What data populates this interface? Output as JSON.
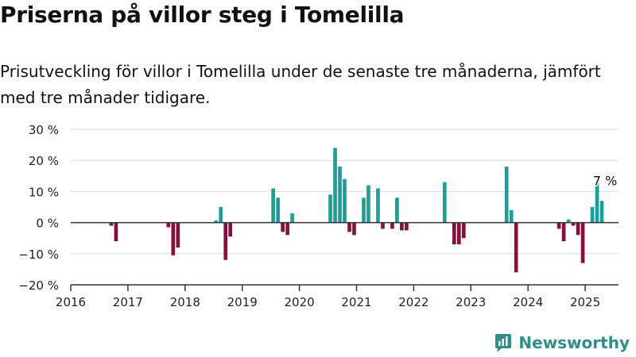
{
  "header": {
    "title": "Priserna på villor steg i Tomelilla",
    "subtitle": "Prisutveckling för villor i Tomelilla under de senaste tre månaderna, jämfört med tre månader tidigare."
  },
  "brand": {
    "name": "Newsworthy",
    "color": "#2f8f88"
  },
  "colors": {
    "positive": "#13a39a",
    "negative": "#8e0b3f",
    "grid": "#d9d9d9",
    "axis": "#333333"
  },
  "chart_data": {
    "type": "bar",
    "title": "",
    "xlabel": "",
    "ylabel": "",
    "y_unit": "%",
    "ylim": [
      -20,
      30
    ],
    "yticks": [
      -20,
      -10,
      0,
      10,
      20,
      30
    ],
    "ytick_labels": [
      "−20 %",
      "−10 %",
      "0 %",
      "10 %",
      "20 %",
      "30 %"
    ],
    "xlim": [
      "2016-01",
      "2025-08"
    ],
    "xtick_labels": [
      "2016",
      "2017",
      "2018",
      "2019",
      "2020",
      "2021",
      "2022",
      "2023",
      "2024",
      "2025"
    ],
    "grid": "horizontal",
    "annotation": {
      "label": "7 %",
      "month": "2025-03",
      "value": 7
    },
    "points": [
      {
        "month": "2016-09",
        "value": -1
      },
      {
        "month": "2016-10",
        "value": -6
      },
      {
        "month": "2017-09",
        "value": -1.5
      },
      {
        "month": "2017-10",
        "value": -10.5
      },
      {
        "month": "2017-11",
        "value": -8
      },
      {
        "month": "2018-07",
        "value": 0.7
      },
      {
        "month": "2018-08",
        "value": 5
      },
      {
        "month": "2018-09",
        "value": -12
      },
      {
        "month": "2018-10",
        "value": -4.5
      },
      {
        "month": "2019-07",
        "value": 11
      },
      {
        "month": "2019-08",
        "value": 8
      },
      {
        "month": "2019-09",
        "value": -3
      },
      {
        "month": "2019-10",
        "value": -4
      },
      {
        "month": "2019-11",
        "value": 3
      },
      {
        "month": "2020-07",
        "value": 9
      },
      {
        "month": "2020-08",
        "value": 24
      },
      {
        "month": "2020-09",
        "value": 18
      },
      {
        "month": "2020-10",
        "value": 14
      },
      {
        "month": "2020-11",
        "value": -3
      },
      {
        "month": "2020-12",
        "value": -4
      },
      {
        "month": "2021-02",
        "value": 8
      },
      {
        "month": "2021-03",
        "value": 12
      },
      {
        "month": "2021-05",
        "value": 11
      },
      {
        "month": "2021-06",
        "value": -2
      },
      {
        "month": "2021-08",
        "value": -2
      },
      {
        "month": "2021-09",
        "value": 8
      },
      {
        "month": "2021-10",
        "value": -2.5
      },
      {
        "month": "2021-11",
        "value": -2.5
      },
      {
        "month": "2022-07",
        "value": 13
      },
      {
        "month": "2022-09",
        "value": -7
      },
      {
        "month": "2022-10",
        "value": -7
      },
      {
        "month": "2022-11",
        "value": -5
      },
      {
        "month": "2023-08",
        "value": 18
      },
      {
        "month": "2023-09",
        "value": 4
      },
      {
        "month": "2023-10",
        "value": -16
      },
      {
        "month": "2024-07",
        "value": -2
      },
      {
        "month": "2024-08",
        "value": -6
      },
      {
        "month": "2024-09",
        "value": 1
      },
      {
        "month": "2024-10",
        "value": -1
      },
      {
        "month": "2024-11",
        "value": -4
      },
      {
        "month": "2024-12",
        "value": -13
      },
      {
        "month": "2025-02",
        "value": 5
      },
      {
        "month": "2025-03",
        "value": 13
      },
      {
        "month": "2025-04",
        "value": 7
      }
    ]
  }
}
